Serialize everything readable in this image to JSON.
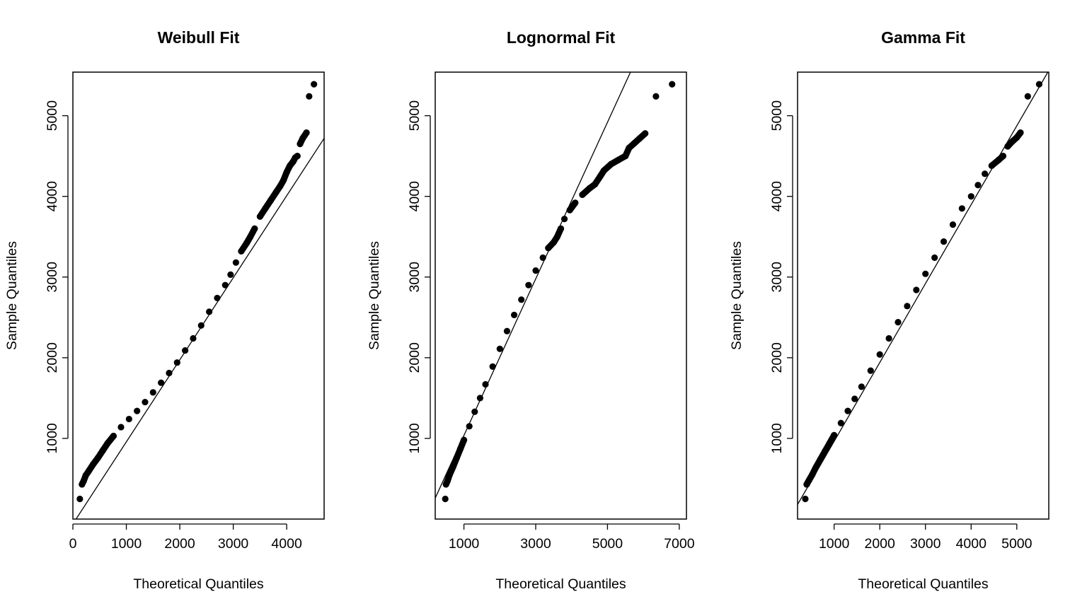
{
  "chart_data": [
    {
      "type": "scatter",
      "title": "Weibull Fit",
      "xlabel": "Theoretical Quantiles",
      "ylabel": "Sample Quantiles",
      "xlim": [
        0,
        4700
      ],
      "ylim": [
        0,
        5540
      ],
      "xticks": [
        "0",
        "1000",
        "2000",
        "3000",
        "4000"
      ],
      "yticks": [
        "1000",
        "2000",
        "3000",
        "4000",
        "5000"
      ],
      "grid": false,
      "series": [
        {
          "values_x": [
            130,
            170,
            200,
            240,
            300,
            380,
            470,
            560,
            650,
            760,
            900,
            1050,
            1200,
            1350,
            1500,
            1650,
            1800,
            1950,
            2100,
            2250,
            2400,
            2550,
            2700,
            2850,
            2950,
            3050,
            3150,
            3250,
            3320,
            3400,
            3500,
            3600,
            3700,
            3800,
            3880,
            3940,
            4000,
            4060,
            4120,
            4160,
            4200,
            4250,
            4300,
            4370,
            4420,
            4510
          ],
          "values_y": [
            250,
            430,
            470,
            540,
            600,
            680,
            760,
            850,
            940,
            1030,
            1140,
            1240,
            1340,
            1450,
            1570,
            1690,
            1810,
            1940,
            2090,
            2240,
            2400,
            2570,
            2740,
            2900,
            3030,
            3180,
            3320,
            3420,
            3500,
            3600,
            3750,
            3850,
            3950,
            4050,
            4130,
            4200,
            4300,
            4380,
            4430,
            4480,
            4500,
            4650,
            4720,
            4790,
            5240,
            5390
          ]
        }
      ],
      "reference_line": {
        "x": [
          0,
          4700
        ],
        "y": [
          -60,
          4720
        ]
      }
    },
    {
      "type": "scatter",
      "title": "Lognormal Fit",
      "xlabel": "Theoretical Quantiles",
      "ylabel": "Sample Quantiles",
      "xlim": [
        200,
        7200
      ],
      "ylim": [
        0,
        5540
      ],
      "xticks": [
        "1000",
        "3000",
        "5000",
        "7000"
      ],
      "yticks": [
        "1000",
        "2000",
        "3000",
        "4000",
        "5000"
      ],
      "grid": false,
      "series": [
        {
          "values_x": [
            480,
            500,
            540,
            600,
            700,
            800,
            900,
            1000,
            1150,
            1300,
            1450,
            1600,
            1800,
            2000,
            2200,
            2400,
            2600,
            2800,
            3000,
            3200,
            3350,
            3500,
            3600,
            3700,
            3800,
            3950,
            4100,
            4300,
            4500,
            4650,
            4800,
            4900,
            5100,
            5300,
            5500,
            5600,
            5750,
            5900,
            6050,
            6350,
            6800
          ],
          "values_y": [
            250,
            430,
            470,
            550,
            650,
            760,
            870,
            980,
            1150,
            1330,
            1500,
            1670,
            1890,
            2110,
            2330,
            2530,
            2720,
            2900,
            3080,
            3240,
            3360,
            3430,
            3500,
            3600,
            3720,
            3830,
            3920,
            4020,
            4100,
            4150,
            4250,
            4320,
            4400,
            4450,
            4500,
            4600,
            4660,
            4720,
            4780,
            5240,
            5390
          ]
        }
      ],
      "reference_line": {
        "x": [
          200,
          5640
        ],
        "y": [
          260,
          5540
        ]
      }
    },
    {
      "type": "scatter",
      "title": "Gamma Fit",
      "xlabel": "Theoretical Quantiles",
      "ylabel": "Sample Quantiles",
      "xlim": [
        200,
        5700
      ],
      "ylim": [
        0,
        5540
      ],
      "xticks": [
        "1000",
        "2000",
        "3000",
        "4000",
        "5000"
      ],
      "yticks": [
        "1000",
        "2000",
        "3000",
        "4000",
        "5000"
      ],
      "grid": false,
      "series": [
        {
          "values_x": [
            370,
            400,
            450,
            520,
            600,
            700,
            800,
            900,
            1000,
            1150,
            1300,
            1450,
            1600,
            1800,
            2000,
            2200,
            2400,
            2600,
            2800,
            3000,
            3200,
            3400,
            3600,
            3800,
            4000,
            4150,
            4300,
            4450,
            4600,
            4700,
            4800,
            4900,
            5000,
            5080,
            5240,
            5490
          ],
          "values_y": [
            250,
            430,
            480,
            550,
            640,
            740,
            840,
            940,
            1040,
            1190,
            1340,
            1490,
            1640,
            1840,
            2040,
            2240,
            2440,
            2640,
            2840,
            3040,
            3240,
            3440,
            3650,
            3850,
            4000,
            4140,
            4280,
            4380,
            4450,
            4500,
            4620,
            4680,
            4730,
            4790,
            5240,
            5390
          ]
        }
      ],
      "reference_line": {
        "x": [
          200,
          5700
        ],
        "y": [
          180,
          5560
        ]
      }
    }
  ]
}
